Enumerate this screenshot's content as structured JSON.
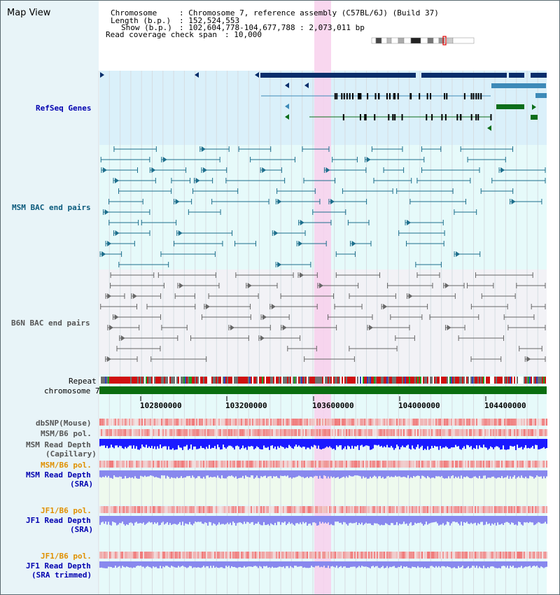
{
  "header": {
    "title": "Map View",
    "chromosome_key": "Chromosome",
    "chromosome_value": ": Chromosome 7, reference assembly (C57BL/6J) (Build 37)",
    "length_key": "Length (b.p.)",
    "length_value": ": 152,524,553",
    "show_key": "Show (b.p.)",
    "show_value": ": 102,604,778-104,677,788 : 2,073,011 bp",
    "coverage_key": "Read coverage check span",
    "coverage_value": ": 10,000"
  },
  "tracks": {
    "refseq": "RefSeq Genes",
    "msm_bac": "MSM BAC end pairs",
    "b6n_bac": "B6N BAC end pairs",
    "repeat": "Repeat",
    "chromosome": "chromosome 7",
    "dbsnp": "dbSNP(Mouse)",
    "msm_b6_pol": "MSM/B6 pol.",
    "msm_read_depth_cap_1": "MSM Read Depth",
    "msm_read_depth_cap_2": "(Capillary)",
    "msm_b6_pol_sra": "MSM/B6 pol.",
    "msm_read_depth_sra_1": "MSM Read Depth",
    "msm_read_depth_sra_2": "(SRA)",
    "jf1_b6_pol": "JF1/B6 pol.",
    "jf1_read_depth_1": "JF1 Read Depth",
    "jf1_read_depth_2": "(SRA)",
    "jf1_b6_pol_trim": "JF1/B6 pol.",
    "jf1_read_depth_trim_1": "JF1 Read Depth",
    "jf1_read_depth_trim_2": "(SRA trimmed)"
  },
  "axis": {
    "ticks": [
      "102800000",
      "103200000",
      "103600000",
      "104000000",
      "104400000"
    ]
  },
  "colors": {
    "refseq_dark": "#0a2e6b",
    "refseq_light": "#3d8ab8",
    "refseq_green": "#0d6e1a",
    "msm_bac": "#1c6e8c",
    "b6n_bac": "#666666",
    "highlight": "#f8d0ec",
    "chromosome_bar": "#0a6e10",
    "read_depth_blue": "#1a1aff",
    "read_depth_light": "#8888ee",
    "label_blue": "#0000b0",
    "label_orange": "#e09000",
    "label_teal": "#0a5a7c"
  }
}
